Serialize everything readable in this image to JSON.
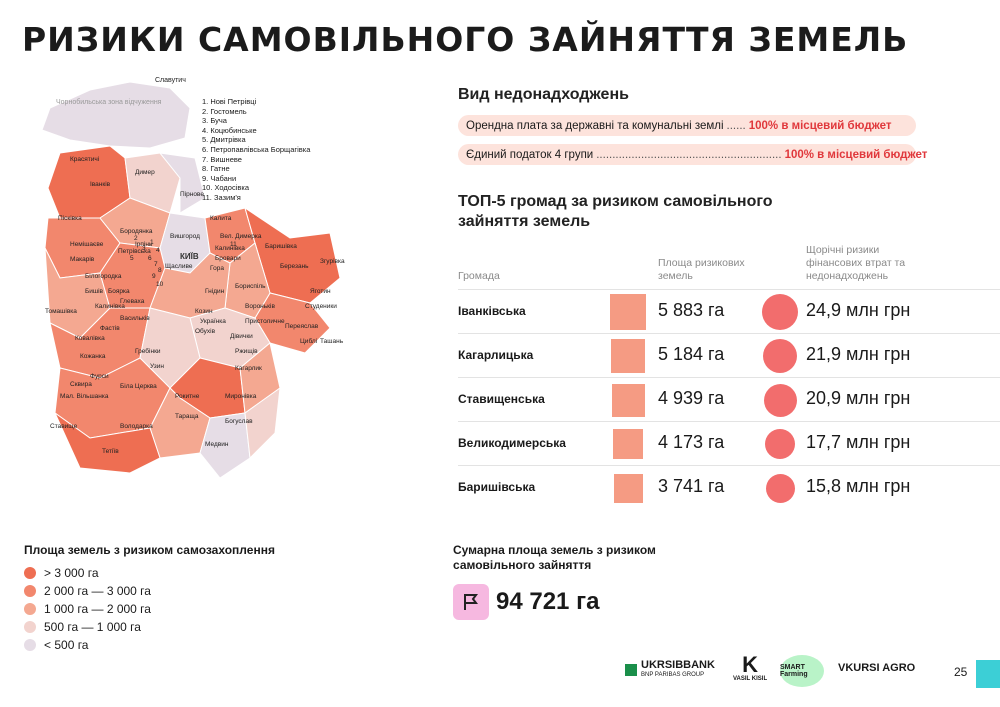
{
  "title": "РИЗИКИ САМОВІЛЬНОГО ЗАЙНЯТТЯ ЗЕМЕЛЬ",
  "map": {
    "top_label": "Славутич",
    "zone_label": "Чорнобильська зона відчуження",
    "city_label": "КИЇВ",
    "numbered_list": [
      "1. Нові Петрівці",
      "2. Гостомель",
      "3. Буча",
      "4. Коцюбинське",
      "5. Дмитрівка",
      "6. Петропавлівська Борщагівка",
      "7. Вишневе",
      "8. Гатне",
      "9. Чабани",
      "10. Ходосівка",
      "11. Зазим'я"
    ],
    "number_markers": [
      "1",
      "2",
      "3",
      "4",
      "5",
      "6",
      "7",
      "8",
      "9",
      "10",
      "11"
    ],
    "communities": [
      "Красятичі",
      "Іванків",
      "Димер",
      "Пірнове",
      "Піскiвка",
      "Бородянка",
      "Вишгород",
      "Немішаєве",
      "Макарів",
      "Ірпінь",
      "Петрівська",
      "Білогородка",
      "Бишів",
      "Боярка",
      "Глеваха",
      "Щасливе",
      "Гора",
      "Бровари",
      "Калита",
      "Вел. Димерка",
      "Калинівка",
      "Баришівка",
      "Березань",
      "Згурівка",
      "Яготин",
      "Студеники",
      "Бориспіль",
      "Вороньків",
      "Пристоличне",
      "Переяслав",
      "Циблі",
      "Ташань",
      "Гнідин",
      "Козин",
      "Українка",
      "Обухів",
      "Дівички",
      "Ржищів",
      "Кагарлик",
      "Томашівка",
      "Калинівка",
      "Фастів",
      "Васильків",
      "Ковалівка",
      "Кожанка",
      "Гребінки",
      "Фурси",
      "Сквира",
      "Мал. Вільшанка",
      "Біла Церква",
      "Узин",
      "Рокитне",
      "Володарка",
      "Тетіїв",
      "Ставище",
      "Тараща",
      "Богуслав",
      "Миронівка",
      "Медвин"
    ]
  },
  "legend": {
    "title": "Площа земель з ризиком самозахоплення",
    "items": [
      {
        "label": "> 3 000 га",
        "color": "#ee6e52"
      },
      {
        "label": "2 000 га — 3 000 га",
        "color": "#f2876d"
      },
      {
        "label": "1 000 га — 2 000 га",
        "color": "#f4a891"
      },
      {
        "label": "500 га — 1 000 га",
        "color": "#f2d3ce"
      },
      {
        "label": "< 500 га",
        "color": "#e6dde6"
      }
    ]
  },
  "revenue": {
    "heading": "Вид недонадходжень",
    "rows": [
      {
        "label": "Орендна плата за державні та комунальні землі",
        "dots": "......",
        "value": "100% в місцевий бюджет"
      },
      {
        "label": "Єдиний податок 4 групи",
        "dots": "..........................................................",
        "value": "100% в місцевий бюджет"
      }
    ]
  },
  "top5": {
    "heading_line1": "ТОП-5 громад за ризиком самовільного",
    "heading_line2": "зайняття земель",
    "col_community": "Громада",
    "col_area": "Площа ризикових земель",
    "col_risk": "Щорічні ризики фінансових втрат та недонадходжень",
    "rows": [
      {
        "name": "Іванківська",
        "area": "5 883 га",
        "risk": "24,9 млн грн",
        "area_ha": 5883,
        "risk_mln": 24.9
      },
      {
        "name": "Кагарлицька",
        "area": "5 184 га",
        "risk": "21,9 млн грн",
        "area_ha": 5184,
        "risk_mln": 21.9
      },
      {
        "name": "Ставищенська",
        "area": "4 939 га",
        "risk": "20,9 млн грн",
        "area_ha": 4939,
        "risk_mln": 20.9
      },
      {
        "name": "Великодимерська",
        "area": "4 173 га",
        "risk": "17,7 млн грн",
        "area_ha": 4173,
        "risk_mln": 17.7
      },
      {
        "name": "Баришівська",
        "area": "3 741 га",
        "risk": "15,8 млн грн",
        "area_ha": 3741,
        "risk_mln": 15.8
      }
    ]
  },
  "summary": {
    "label": "Сумарна площа земель з ризиком самовільного зайняття",
    "value": "94 721 га",
    "icon": "flag-icon"
  },
  "footer": {
    "logos": [
      {
        "name": "UKRSIBBANK",
        "sub": "BNP PARIBAS GROUP"
      },
      {
        "name": "VASIL KISIL",
        "sub": ""
      },
      {
        "name": "SMART Farming",
        "sub": ""
      },
      {
        "name": "VKURSI AGRO",
        "sub": ""
      }
    ],
    "page_number": "25"
  }
}
